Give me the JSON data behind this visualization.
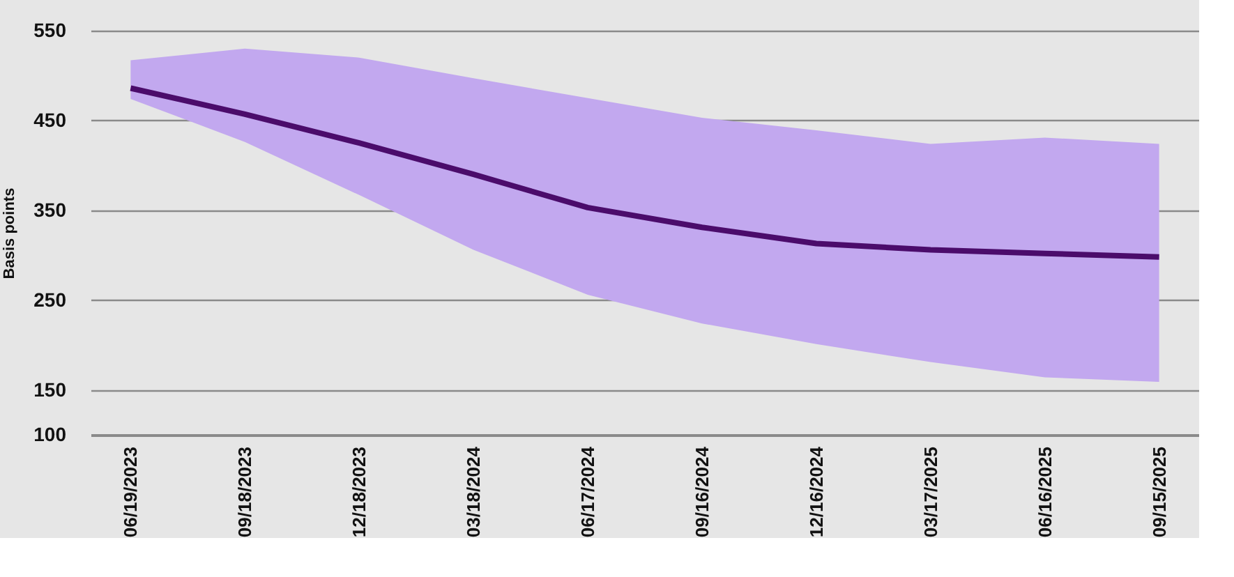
{
  "chart_data": {
    "type": "line",
    "ylabel": "Basis points",
    "categories": [
      "06/19/2023",
      "09/18/2023",
      "12/18/2023",
      "03/18/2024",
      "06/17/2024",
      "09/16/2024",
      "12/16/2024",
      "03/17/2025",
      "06/16/2025",
      "09/15/2025"
    ],
    "series": [
      {
        "color": "#4b0c6b",
        "values": [
          486,
          457,
          425,
          390,
          353,
          331,
          313,
          306,
          302,
          298
        ],
        "lower": [
          474,
          426,
          367,
          306,
          256,
          224,
          201,
          181,
          164,
          159
        ],
        "upper": [
          517,
          530,
          520,
          497,
          475,
          453,
          439,
          424,
          431,
          424
        ]
      }
    ],
    "ylim": [
      100,
      550
    ],
    "yticks": [
      100,
      150,
      250,
      350,
      450,
      550
    ],
    "grid": "y",
    "line_style": "solid",
    "marker": "none"
  }
}
